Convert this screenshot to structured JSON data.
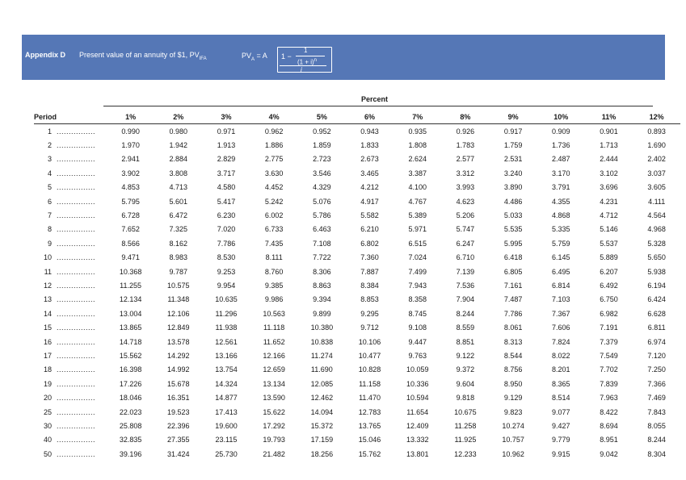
{
  "header": {
    "appendix": "Appendix D",
    "description": "Present value of an annuity of $1, PV",
    "description_sub": "IFA",
    "formula_lhs": "PV",
    "formula_lhs_sub": "A",
    "formula_eq": "= A",
    "formula_one_minus": "1 −",
    "formula_inner_num": "1",
    "formula_inner_den": "(1 + i)",
    "formula_inner_exp": "n",
    "formula_outer_den": "i"
  },
  "table": {
    "percent_label": "Percent",
    "period_header": "Period",
    "rate_headers": [
      "1%",
      "2%",
      "3%",
      "4%",
      "5%",
      "6%",
      "7%",
      "8%",
      "9%",
      "10%",
      "11%",
      "12%"
    ],
    "rows": [
      {
        "period": "1",
        "values": [
          "0.990",
          "0.980",
          "0.971",
          "0.962",
          "0.952",
          "0.943",
          "0.935",
          "0.926",
          "0.917",
          "0.909",
          "0.901",
          "0.893"
        ]
      },
      {
        "period": "2",
        "values": [
          "1.970",
          "1.942",
          "1.913",
          "1.886",
          "1.859",
          "1.833",
          "1.808",
          "1.783",
          "1.759",
          "1.736",
          "1.713",
          "1.690"
        ]
      },
      {
        "period": "3",
        "values": [
          "2.941",
          "2.884",
          "2.829",
          "2.775",
          "2.723",
          "2.673",
          "2.624",
          "2.577",
          "2.531",
          "2.487",
          "2.444",
          "2.402"
        ]
      },
      {
        "period": "4",
        "values": [
          "3.902",
          "3.808",
          "3.717",
          "3.630",
          "3.546",
          "3.465",
          "3.387",
          "3.312",
          "3.240",
          "3.170",
          "3.102",
          "3.037"
        ]
      },
      {
        "period": "5",
        "values": [
          "4.853",
          "4.713",
          "4.580",
          "4.452",
          "4.329",
          "4.212",
          "4.100",
          "3.993",
          "3.890",
          "3.791",
          "3.696",
          "3.605"
        ]
      },
      {
        "period": "6",
        "values": [
          "5.795",
          "5.601",
          "5.417",
          "5.242",
          "5.076",
          "4.917",
          "4.767",
          "4.623",
          "4.486",
          "4.355",
          "4.231",
          "4.111"
        ]
      },
      {
        "period": "7",
        "values": [
          "6.728",
          "6.472",
          "6.230",
          "6.002",
          "5.786",
          "5.582",
          "5.389",
          "5.206",
          "5.033",
          "4.868",
          "4.712",
          "4.564"
        ]
      },
      {
        "period": "8",
        "values": [
          "7.652",
          "7.325",
          "7.020",
          "6.733",
          "6.463",
          "6.210",
          "5.971",
          "5.747",
          "5.535",
          "5.335",
          "5.146",
          "4.968"
        ]
      },
      {
        "period": "9",
        "values": [
          "8.566",
          "8.162",
          "7.786",
          "7.435",
          "7.108",
          "6.802",
          "6.515",
          "6.247",
          "5.995",
          "5.759",
          "5.537",
          "5.328"
        ]
      },
      {
        "period": "10",
        "values": [
          "9.471",
          "8.983",
          "8.530",
          "8.111",
          "7.722",
          "7.360",
          "7.024",
          "6.710",
          "6.418",
          "6.145",
          "5.889",
          "5.650"
        ]
      },
      {
        "period": "11",
        "values": [
          "10.368",
          "9.787",
          "9.253",
          "8.760",
          "8.306",
          "7.887",
          "7.499",
          "7.139",
          "6.805",
          "6.495",
          "6.207",
          "5.938"
        ]
      },
      {
        "period": "12",
        "values": [
          "11.255",
          "10.575",
          "9.954",
          "9.385",
          "8.863",
          "8.384",
          "7.943",
          "7.536",
          "7.161",
          "6.814",
          "6.492",
          "6.194"
        ]
      },
      {
        "period": "13",
        "values": [
          "12.134",
          "11.348",
          "10.635",
          "9.986",
          "9.394",
          "8.853",
          "8.358",
          "7.904",
          "7.487",
          "7.103",
          "6.750",
          "6.424"
        ]
      },
      {
        "period": "14",
        "values": [
          "13.004",
          "12.106",
          "11.296",
          "10.563",
          "9.899",
          "9.295",
          "8.745",
          "8.244",
          "7.786",
          "7.367",
          "6.982",
          "6.628"
        ]
      },
      {
        "period": "15",
        "values": [
          "13.865",
          "12.849",
          "11.938",
          "11.118",
          "10.380",
          "9.712",
          "9.108",
          "8.559",
          "8.061",
          "7.606",
          "7.191",
          "6.811"
        ]
      },
      {
        "period": "16",
        "values": [
          "14.718",
          "13.578",
          "12.561",
          "11.652",
          "10.838",
          "10.106",
          "9.447",
          "8.851",
          "8.313",
          "7.824",
          "7.379",
          "6.974"
        ]
      },
      {
        "period": "17",
        "values": [
          "15.562",
          "14.292",
          "13.166",
          "12.166",
          "11.274",
          "10.477",
          "9.763",
          "9.122",
          "8.544",
          "8.022",
          "7.549",
          "7.120"
        ]
      },
      {
        "period": "18",
        "values": [
          "16.398",
          "14.992",
          "13.754",
          "12.659",
          "11.690",
          "10.828",
          "10.059",
          "9.372",
          "8.756",
          "8.201",
          "7.702",
          "7.250"
        ]
      },
      {
        "period": "19",
        "values": [
          "17.226",
          "15.678",
          "14.324",
          "13.134",
          "12.085",
          "11.158",
          "10.336",
          "9.604",
          "8.950",
          "8.365",
          "7.839",
          "7.366"
        ]
      },
      {
        "period": "20",
        "values": [
          "18.046",
          "16.351",
          "14.877",
          "13.590",
          "12.462",
          "11.470",
          "10.594",
          "9.818",
          "9.129",
          "8.514",
          "7.963",
          "7.469"
        ]
      },
      {
        "period": "25",
        "values": [
          "22.023",
          "19.523",
          "17.413",
          "15.622",
          "14.094",
          "12.783",
          "11.654",
          "10.675",
          "9.823",
          "9.077",
          "8.422",
          "7.843"
        ]
      },
      {
        "period": "30",
        "values": [
          "25.808",
          "22.396",
          "19.600",
          "17.292",
          "15.372",
          "13.765",
          "12.409",
          "11.258",
          "10.274",
          "9.427",
          "8.694",
          "8.055"
        ]
      },
      {
        "period": "40",
        "values": [
          "32.835",
          "27.355",
          "23.115",
          "19.793",
          "17.159",
          "15.046",
          "13.332",
          "11.925",
          "10.757",
          "9.779",
          "8.951",
          "8.244"
        ]
      },
      {
        "period": "50",
        "values": [
          "39.196",
          "31.424",
          "25.730",
          "21.482",
          "18.256",
          "15.762",
          "13.801",
          "12.233",
          "10.962",
          "9.915",
          "9.042",
          "8.304"
        ]
      }
    ]
  },
  "colors": {
    "banner": "#5577b6"
  }
}
